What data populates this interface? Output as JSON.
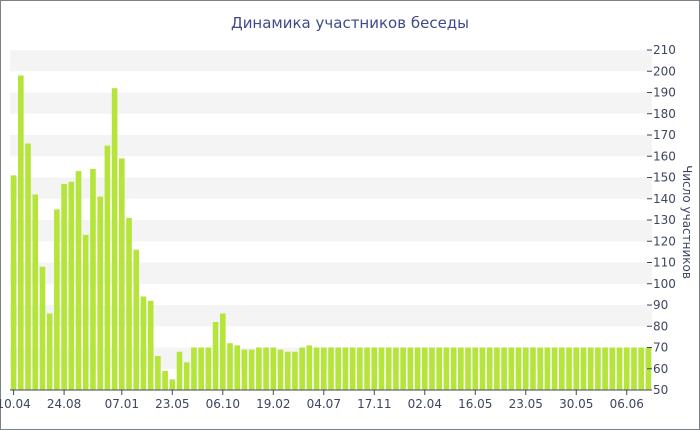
{
  "chart_data": {
    "type": "bar",
    "title": "Динамика участников беседы",
    "xlabel": "",
    "ylabel": "Число участников",
    "ylim": [
      50,
      210
    ],
    "yticks": [
      50,
      60,
      70,
      80,
      90,
      100,
      110,
      120,
      130,
      140,
      150,
      160,
      170,
      180,
      190,
      200,
      210
    ],
    "y_axis_position": "right",
    "grid": "alternating horizontal bands",
    "bar_color": "#b5e43a",
    "x_tick_labels": [
      "10.04",
      "24.08",
      "07.01",
      "23.05",
      "06.10",
      "19.02",
      "04.07",
      "17.11",
      "02.04",
      "16.05",
      "23.05",
      "30.05",
      "06.06"
    ],
    "x_tick_bar_index": [
      0,
      7,
      15,
      22,
      29,
      36,
      43,
      50,
      57,
      64,
      71,
      78,
      85
    ],
    "series": [
      {
        "values": [
          151,
          198,
          166,
          142,
          108,
          86,
          135,
          147,
          148,
          153,
          123,
          154,
          141,
          165,
          192,
          159,
          131,
          116,
          94,
          92,
          66,
          59,
          55,
          68,
          63,
          70,
          70,
          70,
          82,
          86,
          72,
          71,
          69,
          69,
          70,
          70,
          70,
          69,
          68,
          68,
          70,
          71,
          70,
          70,
          70,
          70,
          70,
          70,
          70,
          70,
          70,
          70,
          70,
          70,
          70,
          70,
          70,
          70,
          70,
          70,
          70,
          70,
          70,
          70,
          70,
          70,
          70,
          70,
          70,
          70,
          70,
          70,
          70,
          70,
          70,
          70,
          70,
          70,
          70,
          70,
          70,
          70,
          70,
          70,
          70,
          70,
          70,
          70,
          70
        ]
      }
    ]
  }
}
